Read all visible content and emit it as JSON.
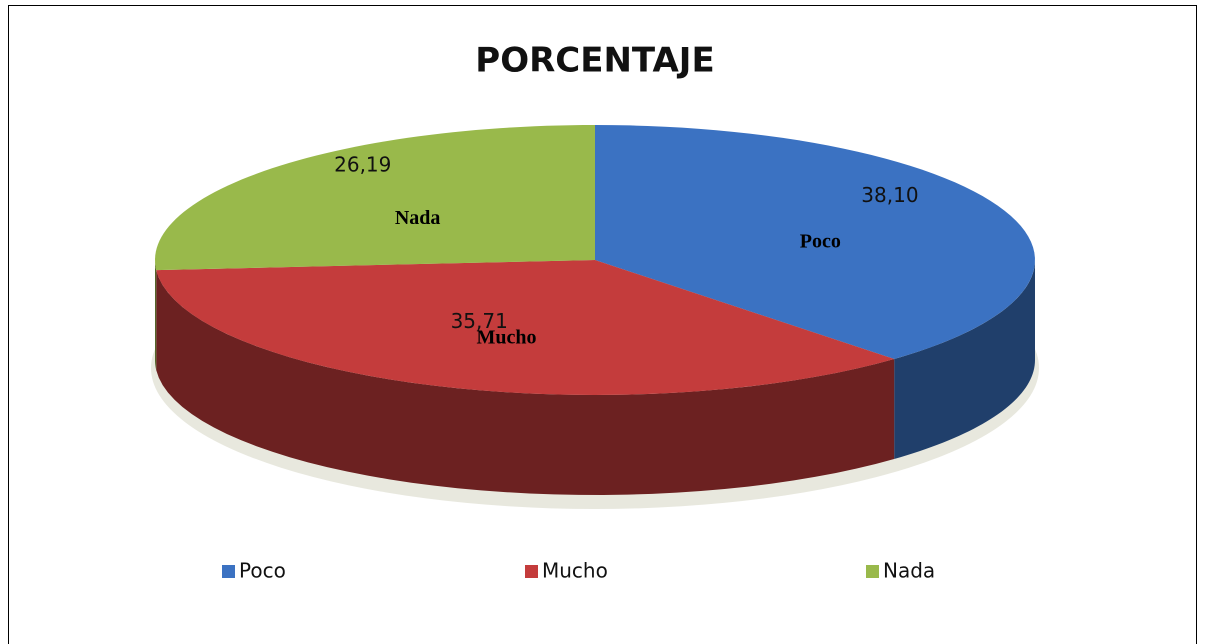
{
  "chart_data": {
    "type": "pie",
    "title": "PORCENTAJE",
    "categories": [
      "Poco",
      "Mucho",
      "Nada"
    ],
    "values": [
      38.1,
      35.71,
      26.19
    ],
    "value_labels": [
      "38,10",
      "35,71",
      "26,19"
    ],
    "colors": [
      "#3b72c2",
      "#c43c3c",
      "#99b94b"
    ],
    "legend": "bottom"
  }
}
